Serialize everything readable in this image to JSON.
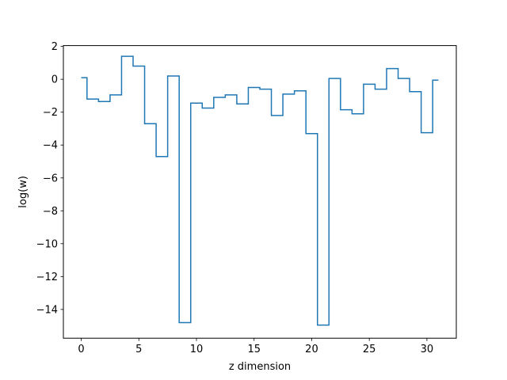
{
  "chart_data": {
    "type": "line",
    "drawstyle": "steps-mid",
    "xlabel": "z dimension",
    "ylabel": "log(w)",
    "xlim": [
      -1.55,
      32.55
    ],
    "ylim": [
      -15.75,
      2.05
    ],
    "xticks": [
      0,
      5,
      10,
      15,
      20,
      25,
      30
    ],
    "yticks": [
      2,
      0,
      -2,
      -4,
      -6,
      -8,
      -10,
      -12,
      -14
    ],
    "grid": false,
    "series": [
      {
        "color": "#1f77b4",
        "x": [
          0,
          1,
          2,
          3,
          4,
          5,
          6,
          7,
          8,
          9,
          10,
          11,
          12,
          13,
          14,
          15,
          16,
          17,
          18,
          19,
          20,
          21,
          22,
          23,
          24,
          25,
          26,
          27,
          28,
          29,
          30,
          31
        ],
        "values": [
          0.1,
          -1.2,
          -1.35,
          -0.95,
          1.4,
          0.8,
          -2.7,
          -4.7,
          0.2,
          -14.8,
          -1.45,
          -1.75,
          -1.1,
          -0.95,
          -1.5,
          -0.5,
          -0.6,
          -2.2,
          -0.9,
          -0.7,
          -3.3,
          -14.95,
          0.05,
          -1.85,
          -2.1,
          -0.3,
          -0.6,
          0.65,
          0.05,
          -0.75,
          -3.25,
          -0.05
        ]
      }
    ]
  }
}
